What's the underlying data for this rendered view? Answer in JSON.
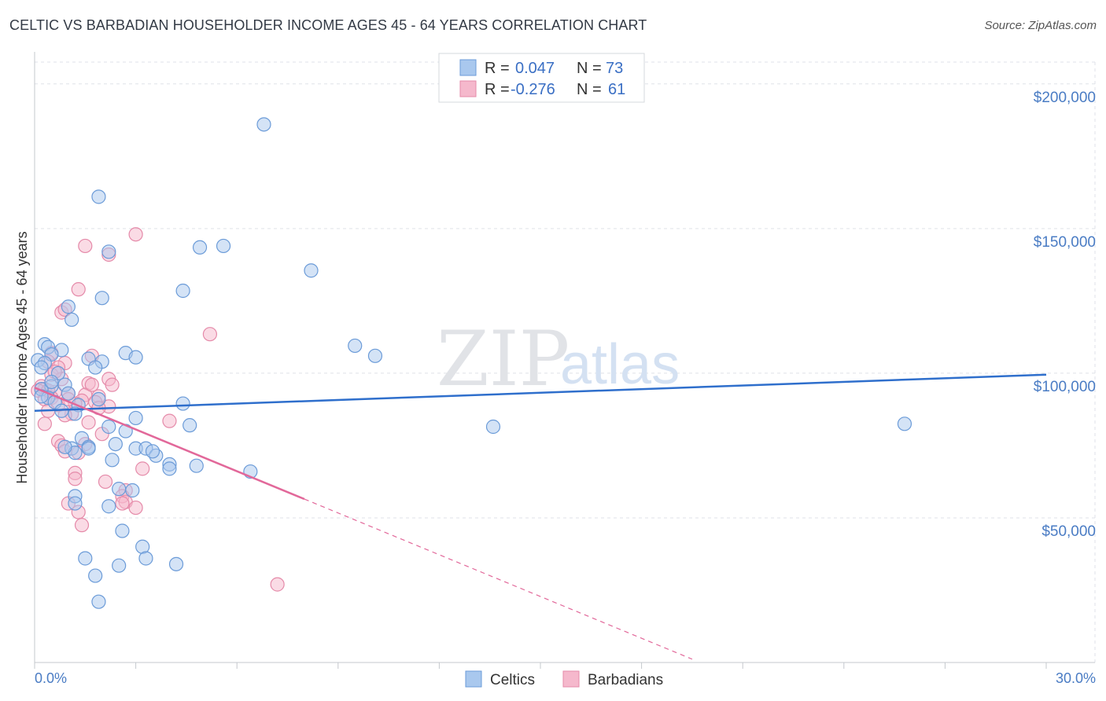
{
  "header": {
    "title": "CELTIC VS BARBADIAN HOUSEHOLDER INCOME AGES 45 - 64 YEARS CORRELATION CHART",
    "source": "Source: ZipAtlas.com"
  },
  "watermark": {
    "zip": "ZIP",
    "atlas": "atlas"
  },
  "legend": {
    "rows": [
      {
        "r_label": "R =",
        "r_value": "0.047",
        "n_label": "N =",
        "n_value": "73"
      },
      {
        "r_label": "R =",
        "r_value": "-0.276",
        "n_label": "N =",
        "n_value": "61"
      }
    ]
  },
  "colors": {
    "celtics_fill": "#a9c8ee",
    "celtics_stroke": "#6b9bd8",
    "celtics_line": "#2f6fcc",
    "barbadians_fill": "#f5b8cc",
    "barbadians_stroke": "#e58aa9",
    "barbadians_line": "#e2689a",
    "grid": "#dfe2e8",
    "tick_label": "#4a7cc4"
  },
  "chart_data": {
    "type": "scatter",
    "title": "CELTIC VS BARBADIAN HOUSEHOLDER INCOME AGES 45 - 64 YEARS CORRELATION CHART",
    "xlabel": "",
    "ylabel": "Householder Income Ages 45 - 64 years",
    "xlim": [
      0,
      30
    ],
    "ylim": [
      0,
      210000
    ],
    "x_tick_labels": [
      "0.0%",
      "30.0%"
    ],
    "y_ticks": [
      50000,
      100000,
      150000,
      200000
    ],
    "y_tick_labels": [
      "$50,000",
      "$100,000",
      "$150,000",
      "$200,000"
    ],
    "series": [
      {
        "name": "Celtics",
        "R": 0.047,
        "N": 73,
        "trend": {
          "x": [
            0,
            30
          ],
          "y": [
            87000,
            99500
          ],
          "dashed_to": 30
        },
        "points": [
          [
            6.8,
            186000
          ],
          [
            1.9,
            161000
          ],
          [
            5.6,
            144000
          ],
          [
            4.9,
            143500
          ],
          [
            2.2,
            142000
          ],
          [
            8.2,
            135500
          ],
          [
            4.4,
            128500
          ],
          [
            2.0,
            126000
          ],
          [
            1.0,
            123000
          ],
          [
            1.1,
            118500
          ],
          [
            9.5,
            109500
          ],
          [
            0.3,
            110000
          ],
          [
            0.4,
            109000
          ],
          [
            0.8,
            108000
          ],
          [
            0.5,
            106500
          ],
          [
            2.7,
            107000
          ],
          [
            3.0,
            105500
          ],
          [
            10.1,
            106000
          ],
          [
            1.6,
            105000
          ],
          [
            2.0,
            104000
          ],
          [
            0.1,
            104500
          ],
          [
            0.3,
            103500
          ],
          [
            0.2,
            102000
          ],
          [
            1.8,
            102000
          ],
          [
            0.7,
            100000
          ],
          [
            0.9,
            96000
          ],
          [
            0.5,
            95500
          ],
          [
            0.2,
            94500
          ],
          [
            1.0,
            93000
          ],
          [
            0.4,
            91500
          ],
          [
            1.9,
            91000
          ],
          [
            0.6,
            90000
          ],
          [
            4.4,
            89500
          ],
          [
            1.3,
            89000
          ],
          [
            0.8,
            87000
          ],
          [
            1.2,
            86000
          ],
          [
            3.0,
            84500
          ],
          [
            4.6,
            82000
          ],
          [
            2.2,
            81500
          ],
          [
            13.6,
            81500
          ],
          [
            25.8,
            82500
          ],
          [
            2.7,
            80000
          ],
          [
            1.4,
            77500
          ],
          [
            2.4,
            75500
          ],
          [
            1.6,
            74500
          ],
          [
            1.1,
            74000
          ],
          [
            3.0,
            74000
          ],
          [
            3.3,
            74000
          ],
          [
            1.2,
            72500
          ],
          [
            3.6,
            71500
          ],
          [
            2.3,
            70000
          ],
          [
            4.0,
            68500
          ],
          [
            4.8,
            68000
          ],
          [
            4.0,
            67000
          ],
          [
            6.4,
            66000
          ],
          [
            2.5,
            60000
          ],
          [
            2.9,
            59500
          ],
          [
            1.2,
            57500
          ],
          [
            1.2,
            55000
          ],
          [
            2.2,
            54000
          ],
          [
            2.6,
            45500
          ],
          [
            3.2,
            40000
          ],
          [
            1.5,
            36000
          ],
          [
            3.3,
            36000
          ],
          [
            4.2,
            34000
          ],
          [
            2.5,
            33500
          ],
          [
            1.8,
            30000
          ],
          [
            1.9,
            21000
          ],
          [
            0.9,
            74500
          ],
          [
            0.2,
            92000
          ],
          [
            0.5,
            97000
          ],
          [
            1.6,
            74000
          ],
          [
            3.5,
            73000
          ]
        ]
      },
      {
        "name": "Barbadians",
        "R": -0.276,
        "N": 61,
        "trend": {
          "x": [
            0,
            8
          ],
          "y": [
            95000,
            56500
          ],
          "dashed_to": 19.5
        },
        "points": [
          [
            3.0,
            148000
          ],
          [
            1.5,
            144000
          ],
          [
            2.2,
            141000
          ],
          [
            1.3,
            129000
          ],
          [
            5.2,
            113500
          ],
          [
            0.8,
            121000
          ],
          [
            0.9,
            122000
          ],
          [
            0.5,
            107000
          ],
          [
            1.7,
            106000
          ],
          [
            0.4,
            104000
          ],
          [
            0.9,
            103500
          ],
          [
            0.7,
            102000
          ],
          [
            0.5,
            99500
          ],
          [
            0.8,
            98000
          ],
          [
            2.2,
            98000
          ],
          [
            1.6,
            96500
          ],
          [
            2.3,
            96000
          ],
          [
            0.2,
            95500
          ],
          [
            0.3,
            94500
          ],
          [
            0.1,
            94000
          ],
          [
            0.6,
            93500
          ],
          [
            1.0,
            93000
          ],
          [
            1.5,
            92500
          ],
          [
            1.9,
            92000
          ],
          [
            0.5,
            91500
          ],
          [
            0.3,
            91000
          ],
          [
            1.4,
            90500
          ],
          [
            1.8,
            90000
          ],
          [
            1.2,
            89500
          ],
          [
            0.7,
            89000
          ],
          [
            2.2,
            88500
          ],
          [
            0.4,
            87000
          ],
          [
            1.1,
            86000
          ],
          [
            0.9,
            85500
          ],
          [
            4.0,
            83500
          ],
          [
            1.6,
            83000
          ],
          [
            0.3,
            82500
          ],
          [
            2.0,
            79000
          ],
          [
            0.7,
            76500
          ],
          [
            1.5,
            75500
          ],
          [
            0.8,
            75000
          ],
          [
            0.9,
            73000
          ],
          [
            1.3,
            72500
          ],
          [
            3.2,
            67000
          ],
          [
            1.2,
            65500
          ],
          [
            1.2,
            63500
          ],
          [
            2.1,
            62500
          ],
          [
            2.7,
            59500
          ],
          [
            2.6,
            57500
          ],
          [
            2.7,
            55500
          ],
          [
            2.6,
            55000
          ],
          [
            1.0,
            55000
          ],
          [
            3.0,
            53500
          ],
          [
            1.3,
            52000
          ],
          [
            1.4,
            47500
          ],
          [
            7.2,
            27000
          ],
          [
            0.6,
            100500
          ],
          [
            1.7,
            96000
          ],
          [
            0.4,
            94000
          ],
          [
            1.0,
            91000
          ],
          [
            1.9,
            88000
          ]
        ]
      }
    ],
    "legend": [
      "Celtics",
      "Barbadians"
    ],
    "legend_position": "top-center",
    "grid": true
  },
  "bottom_legend": {
    "celtics": "Celtics",
    "barbadians": "Barbadians"
  }
}
